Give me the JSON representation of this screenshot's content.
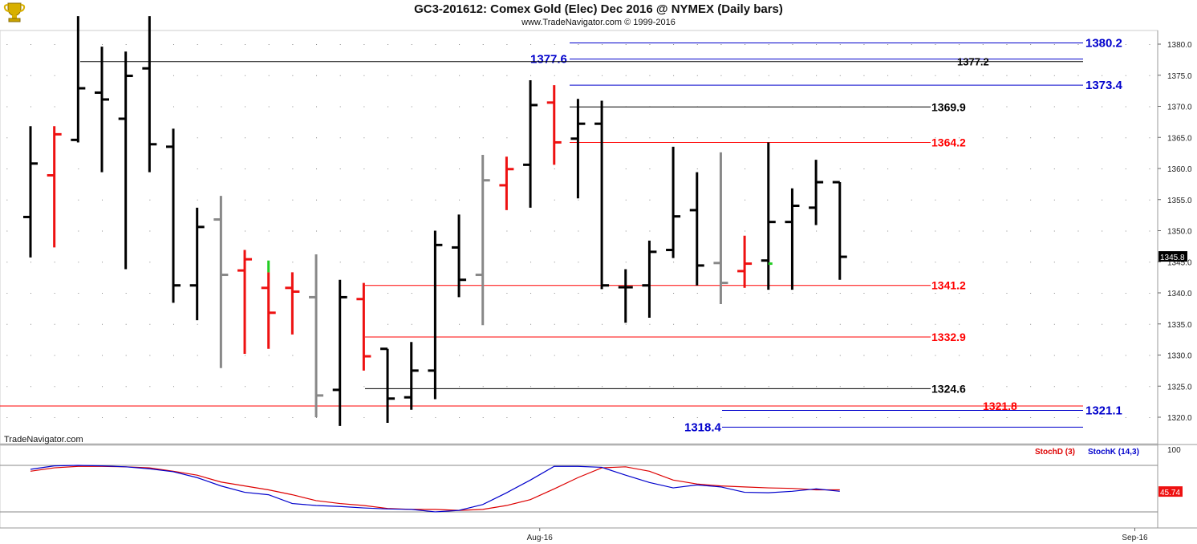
{
  "header": {
    "title": "GC3-201612:  Comex Gold (Elec) Dec 2016 @ NYMEX  (Daily bars)",
    "subtitle": "www.TradeNavigator.com © 1999-2016",
    "watermark": "TradeNavigator.com",
    "logo_icon": "trophy-icon"
  },
  "colors": {
    "up": "#000000",
    "down": "#ee1111",
    "inside": "#888888",
    "blue": "#0000cc",
    "stochD": "#dd0000",
    "stochK": "#0000cc",
    "green": "#22cc22"
  },
  "chart_data": [
    {
      "type": "ohlc",
      "title": "GC3-201612:  Comex Gold (Elec) Dec 2016 @ NYMEX  (Daily bars)",
      "ylim": [
        1316.6,
        1383.8
      ],
      "yticks": [
        "1320.0",
        "1325.0",
        "1330.0",
        "1335.0",
        "1340.0",
        "1345.0",
        "1350.0",
        "1355.0",
        "1360.0",
        "1365.0",
        "1370.0",
        "1375.0",
        "1380.0"
      ],
      "xticks": [
        {
          "label": "Aug-16",
          "bar": 22
        },
        {
          "label": "Sep-16",
          "bar": 47
        }
      ],
      "last_price": "1345.8",
      "bars": [
        {
          "o": 1352.2,
          "h": 1366.8,
          "l": 1345.7,
          "c": 1360.8,
          "color": "up"
        },
        {
          "o": 1358.9,
          "h": 1366.8,
          "l": 1347.3,
          "c": 1365.5,
          "color": "down"
        },
        {
          "o": 1364.6,
          "h": 1384.5,
          "l": 1364.2,
          "c": 1372.9,
          "color": "up"
        },
        {
          "o": 1372.2,
          "h": 1379.6,
          "l": 1359.4,
          "c": 1371.1,
          "color": "up"
        },
        {
          "o": 1368.0,
          "h": 1378.8,
          "l": 1343.8,
          "c": 1374.9,
          "color": "up"
        },
        {
          "o": 1376.1,
          "h": 1384.5,
          "l": 1359.4,
          "c": 1363.9,
          "color": "up"
        },
        {
          "o": 1363.5,
          "h": 1366.4,
          "l": 1338.4,
          "c": 1341.2,
          "color": "up"
        },
        {
          "o": 1341.2,
          "h": 1353.7,
          "l": 1335.6,
          "c": 1350.6,
          "color": "up"
        },
        {
          "o": 1351.8,
          "h": 1355.6,
          "l": 1327.9,
          "c": 1342.9,
          "color": "inside"
        },
        {
          "o": 1343.6,
          "h": 1346.9,
          "l": 1330.2,
          "c": 1345.4,
          "color": "down"
        },
        {
          "o": 1340.8,
          "h": 1343.3,
          "l": 1331.0,
          "c": 1336.8,
          "color": "down",
          "green_top": 1345.2
        },
        {
          "o": 1340.8,
          "h": 1343.3,
          "l": 1333.3,
          "c": 1340.2,
          "color": "down"
        },
        {
          "o": 1339.3,
          "h": 1346.2,
          "l": 1320.0,
          "c": 1323.5,
          "color": "inside"
        },
        {
          "o": 1324.4,
          "h": 1342.1,
          "l": 1318.6,
          "c": 1339.3,
          "color": "up"
        },
        {
          "o": 1339.0,
          "h": 1341.6,
          "l": 1327.5,
          "c": 1329.8,
          "color": "down"
        },
        {
          "o": 1331.0,
          "h": 1331.0,
          "l": 1319.1,
          "c": 1323.0,
          "color": "up"
        },
        {
          "o": 1323.2,
          "h": 1332.1,
          "l": 1321.2,
          "c": 1327.5,
          "color": "up"
        },
        {
          "o": 1327.5,
          "h": 1350.0,
          "l": 1322.9,
          "c": 1347.7,
          "color": "up"
        },
        {
          "o": 1347.3,
          "h": 1352.6,
          "l": 1339.3,
          "c": 1342.1,
          "color": "up"
        },
        {
          "o": 1342.9,
          "h": 1362.2,
          "l": 1334.8,
          "c": 1358.1,
          "color": "inside"
        },
        {
          "o": 1357.3,
          "h": 1361.9,
          "l": 1353.3,
          "c": 1359.9,
          "color": "down"
        },
        {
          "o": 1360.6,
          "h": 1374.2,
          "l": 1353.7,
          "c": 1370.2,
          "color": "up"
        },
        {
          "o": 1370.6,
          "h": 1373.4,
          "l": 1360.6,
          "c": 1364.2,
          "color": "down"
        },
        {
          "o": 1364.8,
          "h": 1371.2,
          "l": 1355.2,
          "c": 1367.2,
          "color": "up"
        },
        {
          "o": 1367.2,
          "h": 1370.9,
          "l": 1340.6,
          "c": 1341.2,
          "color": "up"
        },
        {
          "o": 1340.9,
          "h": 1343.8,
          "l": 1335.2,
          "c": 1340.9,
          "color": "up"
        },
        {
          "o": 1341.2,
          "h": 1348.4,
          "l": 1336.0,
          "c": 1346.6,
          "color": "up"
        },
        {
          "o": 1346.9,
          "h": 1363.5,
          "l": 1345.6,
          "c": 1352.3,
          "color": "up"
        },
        {
          "o": 1353.3,
          "h": 1359.4,
          "l": 1341.2,
          "c": 1344.4,
          "color": "up"
        },
        {
          "o": 1344.8,
          "h": 1362.6,
          "l": 1338.2,
          "c": 1341.6,
          "color": "inside"
        },
        {
          "o": 1343.5,
          "h": 1349.2,
          "l": 1340.8,
          "c": 1344.7,
          "color": "down"
        },
        {
          "o": 1345.2,
          "h": 1364.2,
          "l": 1340.5,
          "c": 1351.4,
          "color": "up",
          "green_close": 1344.7
        },
        {
          "o": 1351.4,
          "h": 1356.8,
          "l": 1340.5,
          "c": 1354.0,
          "color": "up"
        },
        {
          "o": 1353.7,
          "h": 1361.4,
          "l": 1350.9,
          "c": 1357.8,
          "color": "up"
        },
        {
          "o": 1357.8,
          "h": 1357.8,
          "l": 1342.1,
          "c": 1345.8,
          "color": "up"
        }
      ],
      "levels": [
        {
          "value": 1380.2,
          "label": "1380.2",
          "color": "blue",
          "bold": true
        },
        {
          "value": 1377.6,
          "label": "1377.6",
          "color": "blue",
          "bold": true,
          "label_side": "left"
        },
        {
          "value": 1377.2,
          "label": "1377.2",
          "color": "black",
          "bold": true
        },
        {
          "value": 1373.4,
          "label": "1373.4",
          "color": "blue",
          "bold": true
        },
        {
          "value": 1369.9,
          "label": "1369.9",
          "color": "black",
          "bold": true
        },
        {
          "value": 1364.2,
          "label": "1364.2",
          "color": "red",
          "bold": true
        },
        {
          "value": 1341.2,
          "label": "1341.2",
          "color": "red",
          "bold": true
        },
        {
          "value": 1332.9,
          "label": "1332.9",
          "color": "red",
          "bold": true
        },
        {
          "value": 1324.6,
          "label": "1324.6",
          "color": "black",
          "bold": true
        },
        {
          "value": 1321.8,
          "label": "1321.8",
          "color": "red",
          "bold": true
        },
        {
          "value": 1321.1,
          "label": "1321.1",
          "color": "blue",
          "bold": true
        },
        {
          "value": 1318.4,
          "label": "1318.4",
          "color": "blue",
          "bold": true,
          "label_side": "left"
        }
      ]
    },
    {
      "type": "line",
      "title": "",
      "ylim": [
        0,
        100
      ],
      "yticks": [
        "100"
      ],
      "series": [
        {
          "name": "StochD (3)",
          "color": "stochD",
          "values": [
            88,
            95,
            98,
            98,
            97,
            95,
            88,
            80,
            66,
            58,
            50,
            40,
            28,
            22,
            18,
            12,
            10,
            10,
            8,
            10,
            18,
            30,
            52,
            75,
            95,
            97,
            88,
            70,
            62,
            58,
            56,
            54,
            53,
            50,
            50
          ]
        },
        {
          "name": "StochK (14,3)",
          "color": "stochK",
          "values": [
            92,
            99,
            100,
            99,
            97,
            93,
            87,
            75,
            58,
            45,
            40,
            22,
            18,
            16,
            13,
            11,
            10,
            5,
            8,
            20,
            44,
            70,
            98,
            98,
            96,
            80,
            65,
            54,
            60,
            56,
            45,
            44,
            47,
            52,
            47
          ]
        }
      ],
      "last_value": "45.74"
    }
  ]
}
